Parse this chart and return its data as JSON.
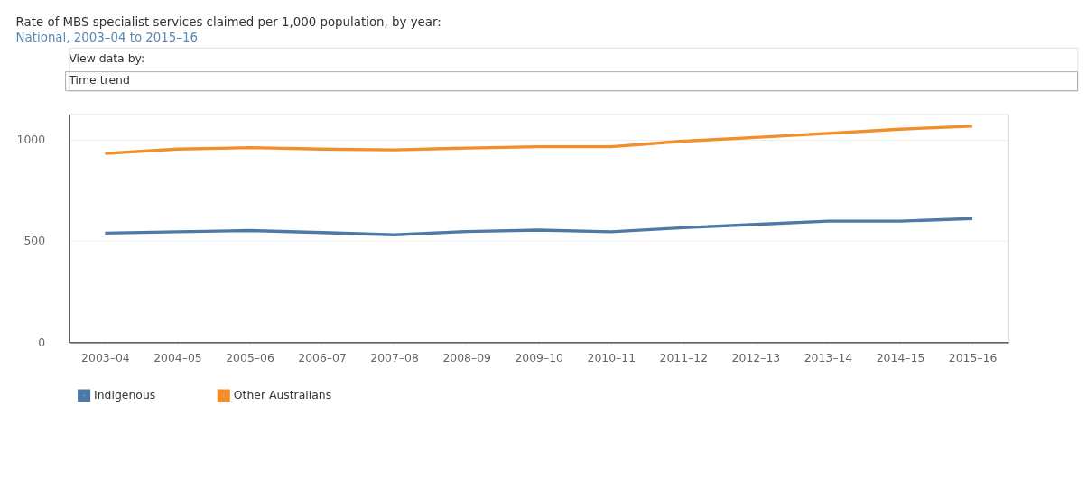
{
  "chart_data": {
    "type": "line",
    "title": "Rate of MBS specialist services claimed per 1,000 population, by year:",
    "subtitle": "National, 2003–04 to 2015–16",
    "categories": [
      "2003–04",
      "2004–05",
      "2005–06",
      "2006–07",
      "2007–08",
      "2008–09",
      "2009–10",
      "2010–11",
      "2011–12",
      "2012–13",
      "2013–14",
      "2014–15",
      "2015–16"
    ],
    "series": [
      {
        "name": "Indigenous",
        "color": "#4e79a7",
        "values": [
          539,
          546,
          552,
          542,
          531,
          547,
          554,
          546,
          566,
          582,
          598,
          598,
          611
        ]
      },
      {
        "name": "Other Australians",
        "color": "#f28e2b",
        "values": [
          932,
          954,
          961,
          954,
          950,
          959,
          966,
          966,
          993,
          1011,
          1031,
          1052,
          1067
        ]
      }
    ],
    "ylim": [
      0,
      1127
    ],
    "yticks": [
      0,
      500,
      1000
    ],
    "grid": "y",
    "legend": "bottom left",
    "marker": "none",
    "line_style": "solid",
    "annotations": [
      "View data by:",
      "Time trend"
    ]
  }
}
